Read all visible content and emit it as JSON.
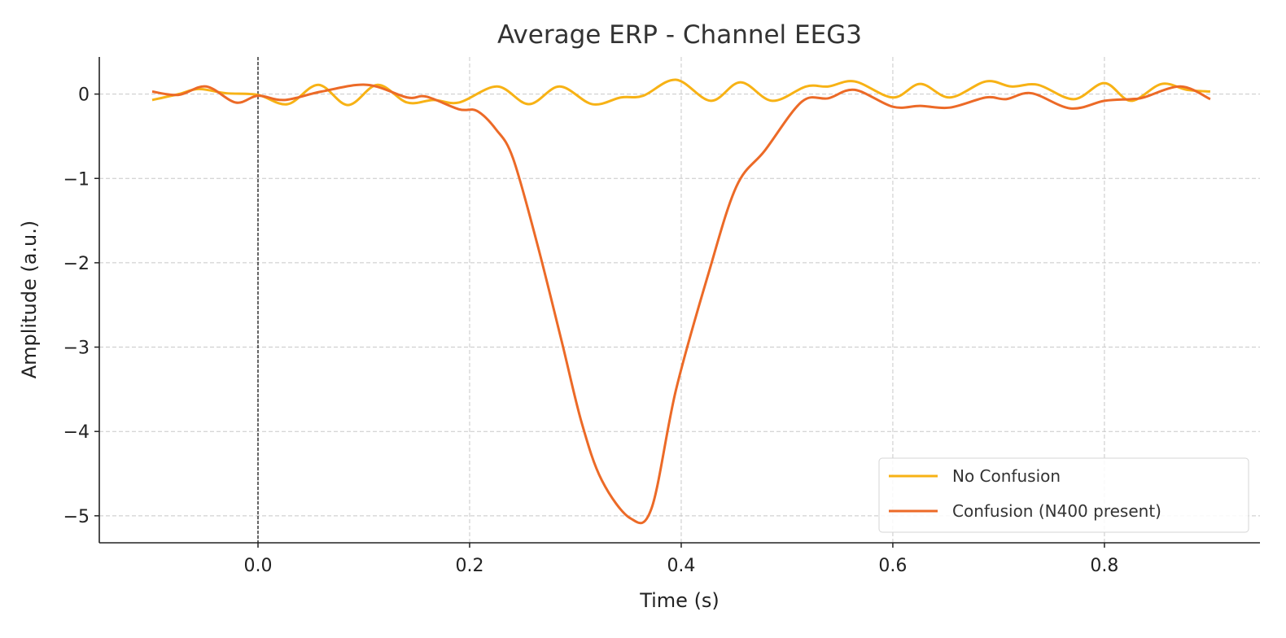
{
  "chart_data": {
    "type": "line",
    "title": "Average ERP - Channel EEG3",
    "xlabel": "Time (s)",
    "ylabel": "Amplitude (a.u.)",
    "xlim": [
      -0.15,
      0.947
    ],
    "ylim": [
      -5.32,
      0.44
    ],
    "xticks": [
      0.0,
      0.2,
      0.4,
      0.6,
      0.8
    ],
    "xtick_labels": [
      "0.0",
      "0.2",
      "0.4",
      "0.6",
      "0.8"
    ],
    "yticks": [
      0,
      -1,
      -2,
      -3,
      -4,
      -5
    ],
    "ytick_labels": [
      "0",
      "−1",
      "−2",
      "−3",
      "−4",
      "−5"
    ],
    "grid": true,
    "vline": {
      "x": 0.0,
      "color": "#000000",
      "style": "dashed"
    },
    "legend_position": "bottom-right",
    "series": [
      {
        "name": "No Confusion",
        "color": "#F7B215",
        "points": [
          [
            -0.1,
            -0.07
          ],
          [
            -0.075,
            0.0
          ],
          [
            -0.056,
            0.06
          ],
          [
            -0.03,
            0.01
          ],
          [
            0.0,
            -0.01
          ],
          [
            0.028,
            -0.12
          ],
          [
            0.057,
            0.11
          ],
          [
            0.085,
            -0.13
          ],
          [
            0.113,
            0.11
          ],
          [
            0.141,
            -0.1
          ],
          [
            0.166,
            -0.07
          ],
          [
            0.19,
            -0.1
          ],
          [
            0.226,
            0.09
          ],
          [
            0.256,
            -0.12
          ],
          [
            0.285,
            0.09
          ],
          [
            0.316,
            -0.12
          ],
          [
            0.343,
            -0.04
          ],
          [
            0.364,
            -0.02
          ],
          [
            0.395,
            0.17
          ],
          [
            0.428,
            -0.08
          ],
          [
            0.456,
            0.14
          ],
          [
            0.486,
            -0.08
          ],
          [
            0.518,
            0.09
          ],
          [
            0.539,
            0.09
          ],
          [
            0.564,
            0.15
          ],
          [
            0.6,
            -0.04
          ],
          [
            0.626,
            0.12
          ],
          [
            0.654,
            -0.04
          ],
          [
            0.688,
            0.15
          ],
          [
            0.712,
            0.09
          ],
          [
            0.737,
            0.11
          ],
          [
            0.771,
            -0.06
          ],
          [
            0.8,
            0.13
          ],
          [
            0.825,
            -0.08
          ],
          [
            0.854,
            0.12
          ],
          [
            0.878,
            0.05
          ],
          [
            0.9,
            0.03
          ]
        ]
      },
      {
        "name": "Confusion (N400 present)",
        "color": "#EC6A27",
        "points": [
          [
            -0.1,
            0.03
          ],
          [
            -0.075,
            -0.01
          ],
          [
            -0.049,
            0.09
          ],
          [
            -0.021,
            -0.1
          ],
          [
            0.0,
            -0.02
          ],
          [
            0.025,
            -0.07
          ],
          [
            0.06,
            0.03
          ],
          [
            0.103,
            0.11
          ],
          [
            0.141,
            -0.04
          ],
          [
            0.159,
            -0.03
          ],
          [
            0.19,
            -0.18
          ],
          [
            0.207,
            -0.2
          ],
          [
            0.225,
            -0.42
          ],
          [
            0.241,
            -0.76
          ],
          [
            0.264,
            -1.78
          ],
          [
            0.287,
            -2.93
          ],
          [
            0.306,
            -3.9
          ],
          [
            0.325,
            -4.58
          ],
          [
            0.352,
            -5.03
          ],
          [
            0.372,
            -4.91
          ],
          [
            0.395,
            -3.51
          ],
          [
            0.425,
            -2.16
          ],
          [
            0.452,
            -1.1
          ],
          [
            0.479,
            -0.67
          ],
          [
            0.514,
            -0.09
          ],
          [
            0.539,
            -0.05
          ],
          [
            0.564,
            0.05
          ],
          [
            0.6,
            -0.15
          ],
          [
            0.626,
            -0.14
          ],
          [
            0.654,
            -0.16
          ],
          [
            0.688,
            -0.04
          ],
          [
            0.707,
            -0.06
          ],
          [
            0.731,
            0.01
          ],
          [
            0.768,
            -0.17
          ],
          [
            0.8,
            -0.08
          ],
          [
            0.825,
            -0.06
          ],
          [
            0.837,
            -0.04
          ],
          [
            0.872,
            0.09
          ],
          [
            0.9,
            -0.06
          ]
        ]
      }
    ]
  }
}
